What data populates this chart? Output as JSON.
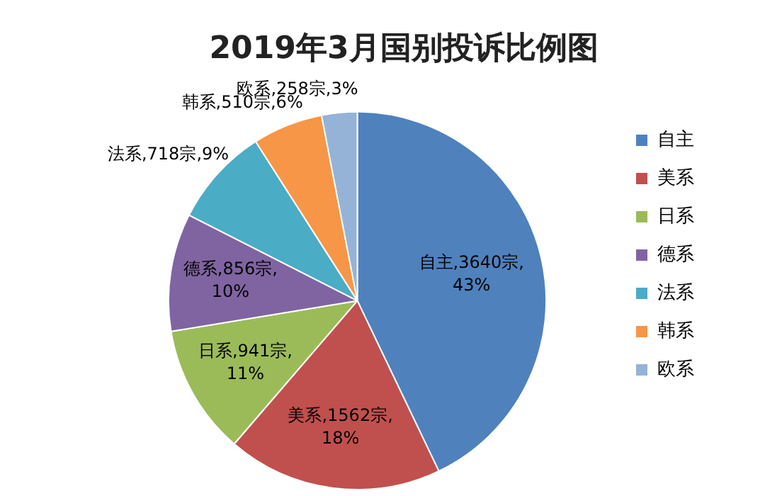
{
  "chart_data": {
    "type": "pie",
    "title": "2019年3月国别投诉比例图",
    "categories": [
      "自主",
      "美系",
      "日系",
      "德系",
      "法系",
      "韩系",
      "欧系"
    ],
    "values": [
      3640,
      1562,
      941,
      856,
      718,
      510,
      258
    ],
    "colors": [
      "#4f81bd",
      "#c0504d",
      "#9bbb59",
      "#8064a2",
      "#4bacc6",
      "#f79646",
      "#95b3d7"
    ],
    "value_labels": [
      "自主,3640宗,43%",
      "美系,1562宗,18%",
      "日系,941宗,11%",
      "德系,856宗,10%",
      "法系,718宗,9%",
      "韩系,510宗,6%",
      "欧系,258宗,3%"
    ],
    "legend": "right"
  }
}
